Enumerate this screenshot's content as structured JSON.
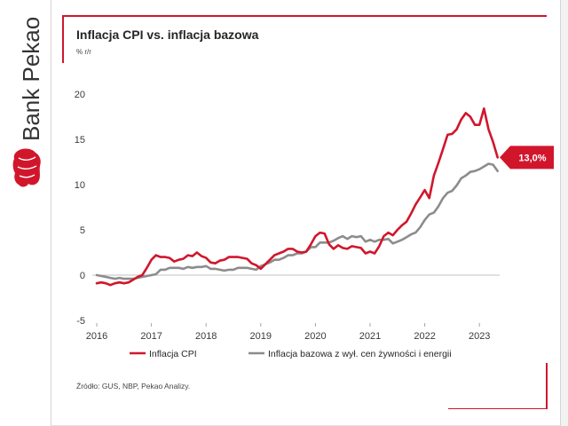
{
  "brand": {
    "name": "Bank Pekao",
    "logo_icon": "pekao-bison-icon",
    "color": "#d1162c"
  },
  "source": "Źródło: GUS, NBP, Pekao Analizy.",
  "chart_data": {
    "type": "line",
    "title": "Inflacja CPI vs. inflacja bazowa",
    "ylabel": "% r/r",
    "ylim": [
      -5,
      20
    ],
    "yticks": [
      20,
      15,
      10,
      5,
      0,
      -5
    ],
    "xticks": [
      "2016",
      "2017",
      "2018",
      "2019",
      "2020",
      "2021",
      "2022",
      "2023"
    ],
    "grid": false,
    "legend": "bottom",
    "x": [
      "2016-01",
      "2016-02",
      "2016-03",
      "2016-04",
      "2016-05",
      "2016-06",
      "2016-07",
      "2016-08",
      "2016-09",
      "2016-10",
      "2016-11",
      "2016-12",
      "2017-01",
      "2017-02",
      "2017-03",
      "2017-04",
      "2017-05",
      "2017-06",
      "2017-07",
      "2017-08",
      "2017-09",
      "2017-10",
      "2017-11",
      "2017-12",
      "2018-01",
      "2018-02",
      "2018-03",
      "2018-04",
      "2018-05",
      "2018-06",
      "2018-07",
      "2018-08",
      "2018-09",
      "2018-10",
      "2018-11",
      "2018-12",
      "2019-01",
      "2019-02",
      "2019-03",
      "2019-04",
      "2019-05",
      "2019-06",
      "2019-07",
      "2019-08",
      "2019-09",
      "2019-10",
      "2019-11",
      "2019-12",
      "2020-01",
      "2020-02",
      "2020-03",
      "2020-04",
      "2020-05",
      "2020-06",
      "2020-07",
      "2020-08",
      "2020-09",
      "2020-10",
      "2020-11",
      "2020-12",
      "2021-01",
      "2021-02",
      "2021-03",
      "2021-04",
      "2021-05",
      "2021-06",
      "2021-07",
      "2021-08",
      "2021-09",
      "2021-10",
      "2021-11",
      "2021-12",
      "2022-01",
      "2022-02",
      "2022-03",
      "2022-04",
      "2022-05",
      "2022-06",
      "2022-07",
      "2022-08",
      "2022-09",
      "2022-10",
      "2022-11",
      "2022-12",
      "2023-01",
      "2023-02",
      "2023-03",
      "2023-04",
      "2023-05"
    ],
    "series": [
      {
        "name": "Inflacja CPI",
        "color": "#d1162c",
        "values": [
          -0.9,
          -0.8,
          -0.9,
          -1.1,
          -0.9,
          -0.8,
          -0.9,
          -0.8,
          -0.5,
          -0.2,
          0.0,
          0.8,
          1.7,
          2.2,
          2.0,
          2.0,
          1.9,
          1.5,
          1.7,
          1.8,
          2.2,
          2.1,
          2.5,
          2.1,
          1.9,
          1.4,
          1.3,
          1.6,
          1.7,
          2.0,
          2.0,
          2.0,
          1.9,
          1.8,
          1.3,
          1.1,
          0.7,
          1.2,
          1.7,
          2.2,
          2.4,
          2.6,
          2.9,
          2.9,
          2.6,
          2.5,
          2.6,
          3.4,
          4.3,
          4.7,
          4.6,
          3.4,
          2.9,
          3.3,
          3.0,
          2.9,
          3.2,
          3.1,
          3.0,
          2.4,
          2.6,
          2.4,
          3.2,
          4.3,
          4.7,
          4.4,
          5.0,
          5.5,
          5.9,
          6.8,
          7.8,
          8.6,
          9.4,
          8.5,
          11.0,
          12.4,
          13.9,
          15.5,
          15.6,
          16.1,
          17.2,
          17.9,
          17.5,
          16.6,
          16.6,
          18.4,
          16.1,
          14.7,
          13.0
        ]
      },
      {
        "name": "Inflacja bazowa z wył. cen żywności i energii",
        "color": "#8c8c8c",
        "values": [
          0.0,
          -0.1,
          -0.2,
          -0.3,
          -0.4,
          -0.3,
          -0.4,
          -0.4,
          -0.4,
          -0.3,
          -0.2,
          -0.1,
          0.0,
          0.1,
          0.6,
          0.6,
          0.8,
          0.8,
          0.8,
          0.7,
          0.9,
          0.8,
          0.9,
          0.9,
          1.0,
          0.7,
          0.7,
          0.6,
          0.5,
          0.6,
          0.6,
          0.8,
          0.8,
          0.8,
          0.7,
          0.6,
          1.0,
          1.2,
          1.4,
          1.7,
          1.7,
          1.9,
          2.2,
          2.2,
          2.4,
          2.4,
          2.6,
          3.1,
          3.1,
          3.6,
          3.6,
          3.6,
          3.8,
          4.1,
          4.3,
          4.0,
          4.3,
          4.2,
          4.3,
          3.7,
          3.9,
          3.7,
          3.9,
          3.9,
          4.0,
          3.5,
          3.7,
          3.9,
          4.2,
          4.5,
          4.7,
          5.3,
          6.1,
          6.7,
          6.9,
          7.6,
          8.5,
          9.1,
          9.3,
          9.9,
          10.7,
          11.0,
          11.4,
          11.5,
          11.7,
          12.0,
          12.3,
          12.2,
          11.5
        ]
      }
    ],
    "annotations": [
      {
        "text": "13,0%"
      }
    ]
  }
}
